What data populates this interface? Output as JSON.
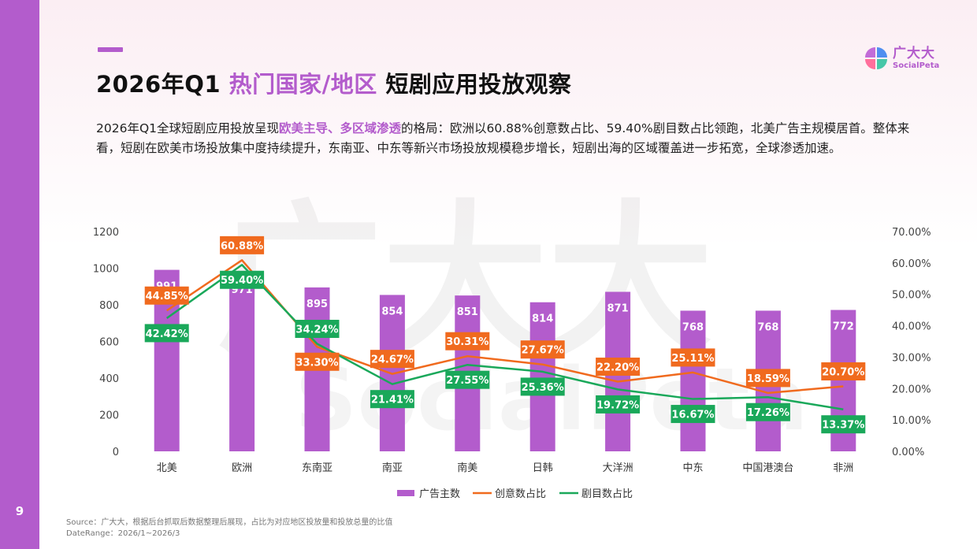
{
  "page_number": "9",
  "header": {
    "title_part1": "2026年Q1 ",
    "title_highlight": "热门国家/地区",
    "title_part2": " 短剧应用投放观察"
  },
  "logo": {
    "cn": "广大大",
    "en": "SocialPeta",
    "colors": [
      "#c26cd8",
      "#4f8ef0",
      "#ff6f9c",
      "#46c7a8"
    ]
  },
  "description": {
    "part1": "2026年Q1全球短剧应用投放呈现",
    "highlight": "欧美主导、多区域渗透",
    "part2": "的格局：欧洲以60.88%创意数占比、59.40%剧目数占比领跑，北美广告主规模居首。整体来看，短剧在欧美市场投放集中度持续提升，东南亚、中东等新兴市场投放规模稳步增长，短剧出海的区域覆盖进一步拓宽，全球渗透加速。"
  },
  "chart_data": {
    "type": "bar",
    "categories": [
      "北美",
      "欧洲",
      "东南亚",
      "南亚",
      "南美",
      "日韩",
      "大洋洲",
      "中东",
      "中国港澳台",
      "非洲"
    ],
    "series": [
      {
        "name": "广告主数",
        "type": "bar",
        "axis": "left",
        "color": "#b35ccc",
        "values": [
          991,
          971,
          895,
          854,
          851,
          814,
          871,
          768,
          768,
          772
        ],
        "labels": [
          "991",
          "971",
          "895",
          "854",
          "851",
          "814",
          "871",
          "768",
          "768",
          "772"
        ]
      },
      {
        "name": "创意数占比",
        "type": "line",
        "axis": "right",
        "color": "#f06a1e",
        "values": [
          44.85,
          60.88,
          33.3,
          24.67,
          30.31,
          27.67,
          22.2,
          25.11,
          18.59,
          20.7
        ],
        "labels": [
          "44.85%",
          "60.88%",
          "33.30%",
          "24.67%",
          "30.31%",
          "27.67%",
          "22.20%",
          "25.11%",
          "18.59%",
          "20.70%"
        ]
      },
      {
        "name": "剧目数占比",
        "type": "line",
        "axis": "right",
        "color": "#1aa85a",
        "values": [
          42.42,
          59.4,
          34.24,
          21.41,
          27.55,
          25.36,
          19.72,
          16.67,
          17.26,
          13.37
        ],
        "labels": [
          "42.42%",
          "59.40%",
          "34.24%",
          "21.41%",
          "27.55%",
          "25.36%",
          "19.72%",
          "16.67%",
          "17.26%",
          "13.37%"
        ]
      }
    ],
    "y_left": {
      "min": 0,
      "max": 1200,
      "ticks": [
        "0",
        "200",
        "400",
        "600",
        "800",
        "1000",
        "1200"
      ]
    },
    "y_right": {
      "min": 0,
      "max": 70,
      "ticks": [
        "0.00%",
        "10.00%",
        "20.00%",
        "30.00%",
        "40.00%",
        "50.00%",
        "60.00%",
        "70.00%"
      ]
    },
    "grid": false,
    "legend_position": "bottom-center"
  },
  "watermark": {
    "cn": "广大大",
    "en": "SocialPeta"
  },
  "footer": {
    "source": "Source：广大大，根据后台抓取后数据整理后展现，占比为对应地区投放量和投放总量的比值",
    "date_range": "DateRange：2026/1~2026/3"
  }
}
